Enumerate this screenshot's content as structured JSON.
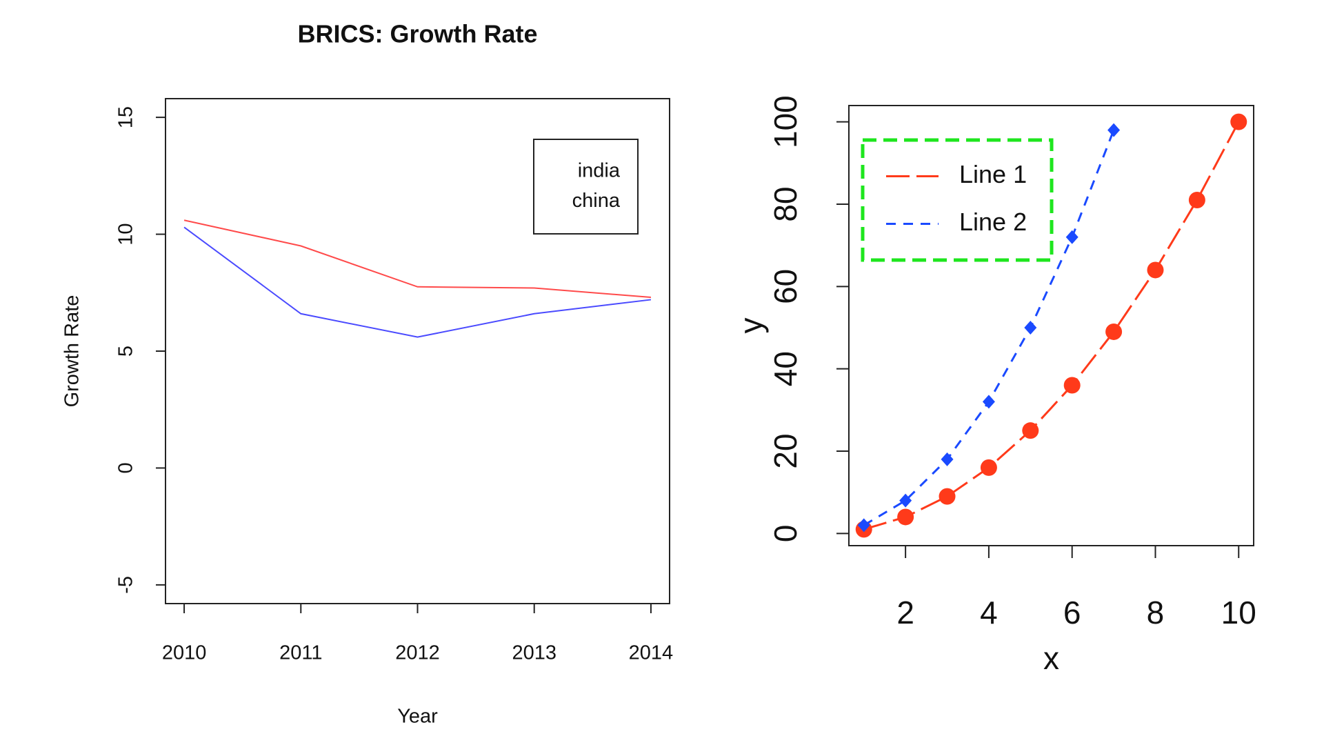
{
  "chart_data": [
    {
      "type": "line",
      "title": "BRICS: Growth Rate",
      "x_label": "Year",
      "y_label": "Growth Rate",
      "x": [
        2010,
        2011,
        2012,
        2013,
        2014
      ],
      "series": [
        {
          "name": "india",
          "color": "#4a4aff",
          "values": [
            10.3,
            6.6,
            5.6,
            6.6,
            7.2
          ]
        },
        {
          "name": "china",
          "color": "#ff4a4a",
          "values": [
            10.6,
            9.5,
            7.75,
            7.7,
            7.3
          ]
        }
      ],
      "xlim": [
        2009.84,
        2014.16
      ],
      "ylim": [
        -5.8,
        15.8
      ],
      "xticks": [
        2010,
        2011,
        2012,
        2013,
        2014
      ],
      "yticks": [
        -5,
        0,
        5,
        10,
        15
      ],
      "legend": "topright",
      "legend_symbols": false
    },
    {
      "type": "line",
      "x_label": "x",
      "y_label": "y",
      "x": [
        1,
        2,
        3,
        4,
        5,
        6,
        7,
        8,
        9,
        10
      ],
      "series": [
        {
          "name": "Line 1",
          "color": "#ff3a1a",
          "marker": "circle",
          "dash": "longdash",
          "values": [
            1,
            4,
            9,
            16,
            25,
            36,
            49,
            64,
            81,
            100
          ]
        },
        {
          "name": "Line 2",
          "color": "#1a4aff",
          "marker": "diamond",
          "dash": "dashed",
          "values": [
            2,
            8,
            18,
            32,
            50,
            72,
            98,
            null,
            null,
            null
          ]
        }
      ],
      "xlim": [
        0.64,
        10.36
      ],
      "ylim": [
        -2.96,
        103.96
      ],
      "xticks": [
        2,
        4,
        6,
        8,
        10
      ],
      "yticks": [
        0,
        20,
        40,
        60,
        80,
        100
      ],
      "legend": "topleft",
      "legend_symbols": true,
      "legend_box_color": "#1ee61e"
    }
  ]
}
